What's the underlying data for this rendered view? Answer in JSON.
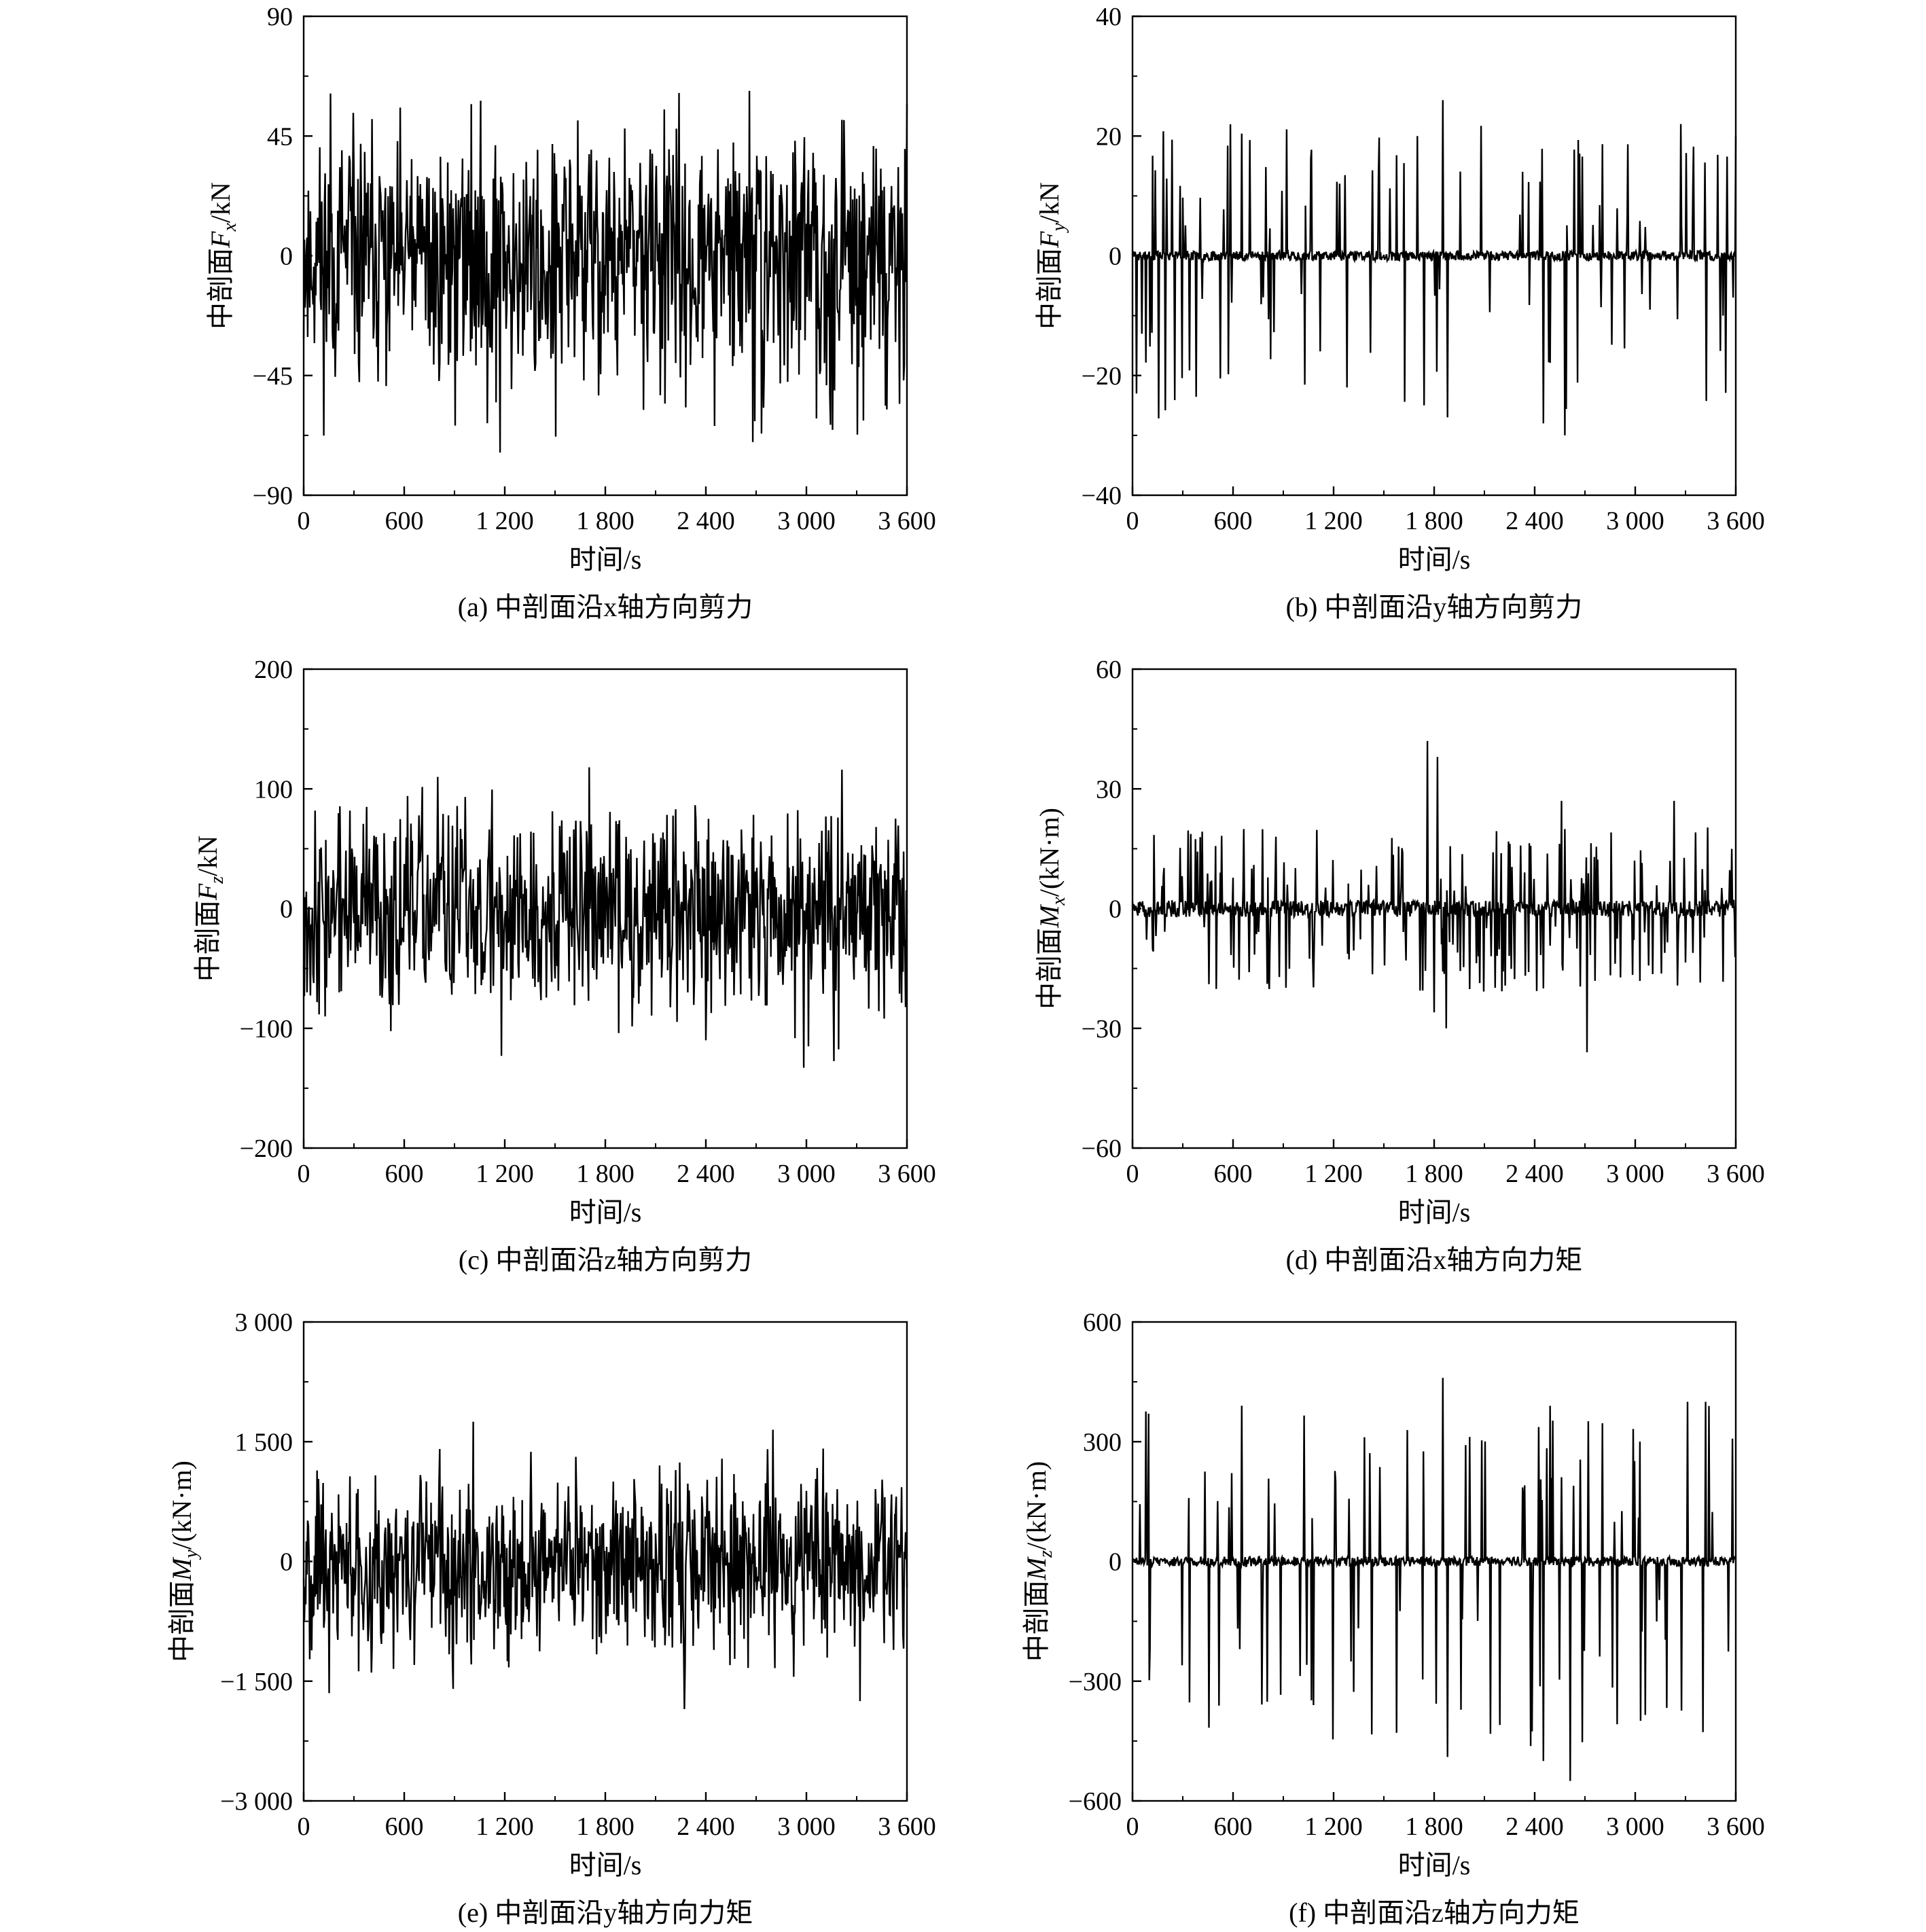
{
  "colors": {
    "line": "#000000",
    "background": "#ffffff"
  },
  "chart_data": [
    {
      "id": "a",
      "type": "line",
      "caption": "(a) 中剖面沿x轴方向剪力",
      "xlabel": "时间/s",
      "ylabel_prefix": "中剖面",
      "ylabel_symbol": "F",
      "ylabel_sub": "x",
      "ylabel_unit": "/kN",
      "xlim": [
        0,
        3600
      ],
      "ylim": [
        -90,
        90
      ],
      "xticks": [
        0,
        600,
        1200,
        1800,
        2400,
        3000,
        3600
      ],
      "xtick_labels": [
        "0",
        "600",
        "1 200",
        "1 800",
        "2 400",
        "3 000",
        "3 600"
      ],
      "yticks": [
        -90,
        -45,
        0,
        45,
        90
      ],
      "ytick_labels": [
        "−90",
        "−45",
        "0",
        "45",
        "90"
      ],
      "pattern": "dense",
      "amp_pos": 62,
      "amp_neg": 74,
      "seed": 11,
      "peaks": [
        [
          160,
          61
        ],
        [
          1170,
          -74
        ],
        [
          1000,
          57
        ],
        [
          1505,
          -68
        ],
        [
          2150,
          55
        ],
        [
          2280,
          -57
        ],
        [
          2660,
          62
        ],
        [
          2680,
          -70
        ],
        [
          3600,
          57
        ]
      ]
    },
    {
      "id": "b",
      "type": "line",
      "caption": "(b) 中剖面沿y轴方向剪力",
      "xlabel": "时间/s",
      "ylabel_prefix": "中剖面",
      "ylabel_symbol": "F",
      "ylabel_sub": "y",
      "ylabel_unit": "/kN",
      "xlim": [
        0,
        3600
      ],
      "ylim": [
        -40,
        40
      ],
      "xticks": [
        0,
        600,
        1200,
        1800,
        2400,
        3000,
        3600
      ],
      "xtick_labels": [
        "0",
        "600",
        "1 200",
        "1 800",
        "2 400",
        "3 000",
        "3 600"
      ],
      "yticks": [
        -40,
        -20,
        0,
        20,
        40
      ],
      "ytick_labels": [
        "−40",
        "−20",
        "0",
        "20",
        "40"
      ],
      "pattern": "sparse",
      "amp_pos": 22,
      "amp_neg": 28,
      "seed": 23,
      "peaks": [
        [
          1850,
          26
        ],
        [
          1740,
          -25
        ],
        [
          1880,
          -27
        ],
        [
          2450,
          -28
        ],
        [
          2580,
          -30
        ],
        [
          1700,
          20
        ],
        [
          3270,
          22
        ],
        [
          3600,
          20
        ]
      ]
    },
    {
      "id": "c",
      "type": "line",
      "caption": "(c) 中剖面沿z轴方向剪力",
      "xlabel": "时间/s",
      "ylabel_prefix": "中剖面",
      "ylabel_symbol": "F",
      "ylabel_sub": "z",
      "ylabel_unit": "/kN",
      "xlim": [
        0,
        3600
      ],
      "ylim": [
        -200,
        200
      ],
      "xticks": [
        0,
        600,
        1200,
        1800,
        2400,
        3000,
        3600
      ],
      "xtick_labels": [
        "0",
        "600",
        "1 200",
        "1 800",
        "2 400",
        "3 000",
        "3 600"
      ],
      "yticks": [
        -200,
        -100,
        0,
        100,
        200
      ],
      "ytick_labels": [
        "−200",
        "−100",
        "0",
        "100",
        "200"
      ],
      "pattern": "dense",
      "amp_pos": 118,
      "amp_neg": 125,
      "seed": 37,
      "peaks": [
        [
          1180,
          -123
        ],
        [
          1705,
          118
        ],
        [
          3010,
          -115
        ],
        [
          3210,
          116
        ],
        [
          800,
          110
        ],
        [
          2400,
          -110
        ]
      ]
    },
    {
      "id": "d",
      "type": "line",
      "caption": "(d) 中剖面沿x轴方向力矩",
      "xlabel": "时间/s",
      "ylabel_prefix": "中剖面",
      "ylabel_symbol": "M",
      "ylabel_sub": "x",
      "ylabel_unit": "/(kN·m)",
      "xlim": [
        0,
        3600
      ],
      "ylim": [
        -60,
        60
      ],
      "xticks": [
        0,
        600,
        1200,
        1800,
        2400,
        3000,
        3600
      ],
      "xtick_labels": [
        "0",
        "600",
        "1 200",
        "1 800",
        "2 400",
        "3 000",
        "3 600"
      ],
      "yticks": [
        -60,
        -30,
        0,
        30,
        60
      ],
      "ytick_labels": [
        "−60",
        "−30",
        "0",
        "30",
        "60"
      ],
      "pattern": "medium",
      "amp_pos": 30,
      "amp_neg": 30,
      "seed": 51,
      "peaks": [
        [
          1760,
          42
        ],
        [
          1820,
          38
        ],
        [
          2710,
          -36
        ],
        [
          1870,
          -30
        ],
        [
          2560,
          27
        ],
        [
          3230,
          27
        ],
        [
          1800,
          -26
        ]
      ]
    },
    {
      "id": "e",
      "type": "line",
      "caption": "(e) 中剖面沿y轴方向力矩",
      "xlabel": "时间/s",
      "ylabel_prefix": "中剖面",
      "ylabel_symbol": "M",
      "ylabel_sub": "y",
      "ylabel_unit": "/(kN·m)",
      "xlim": [
        0,
        3600
      ],
      "ylim": [
        -3000,
        3000
      ],
      "xticks": [
        0,
        600,
        1200,
        1800,
        2400,
        3000,
        3600
      ],
      "xtick_labels": [
        "0",
        "600",
        "1 200",
        "1 800",
        "2 400",
        "3 000",
        "3 600"
      ],
      "yticks": [
        -3000,
        -1500,
        0,
        1500,
        3000
      ],
      "ytick_labels": [
        "−3 000",
        "−1 500",
        "0",
        "1 500",
        "3 000"
      ],
      "pattern": "dense",
      "amp_pos": 1600,
      "amp_neg": 1700,
      "seed": 67,
      "peaks": [
        [
          1010,
          1750
        ],
        [
          2270,
          -1850
        ],
        [
          3320,
          -1750
        ],
        [
          2800,
          1650
        ],
        [
          150,
          -1650
        ]
      ]
    },
    {
      "id": "f",
      "type": "line",
      "caption": "(f) 中剖面沿z轴方向力矩",
      "xlabel": "时间/s",
      "ylabel_prefix": "中剖面",
      "ylabel_symbol": "M",
      "ylabel_sub": "z",
      "ylabel_unit": "/(kN·m)",
      "xlim": [
        0,
        3600
      ],
      "ylim": [
        -600,
        600
      ],
      "xticks": [
        0,
        600,
        1200,
        1800,
        2400,
        3000,
        3600
      ],
      "xtick_labels": [
        "0",
        "600",
        "1 200",
        "1 800",
        "2 400",
        "3 000",
        "3 600"
      ],
      "yticks": [
        -600,
        -300,
        0,
        300,
        600
      ],
      "ytick_labels": [
        "−600",
        "−300",
        "0",
        "300",
        "600"
      ],
      "pattern": "sparse",
      "amp_pos": 400,
      "amp_neg": 480,
      "seed": 83,
      "peaks": [
        [
          1850,
          460
        ],
        [
          2610,
          -550
        ],
        [
          2450,
          -500
        ],
        [
          1880,
          -490
        ],
        [
          3420,
          400
        ],
        [
          3310,
          400
        ],
        [
          2490,
          390
        ]
      ]
    }
  ]
}
